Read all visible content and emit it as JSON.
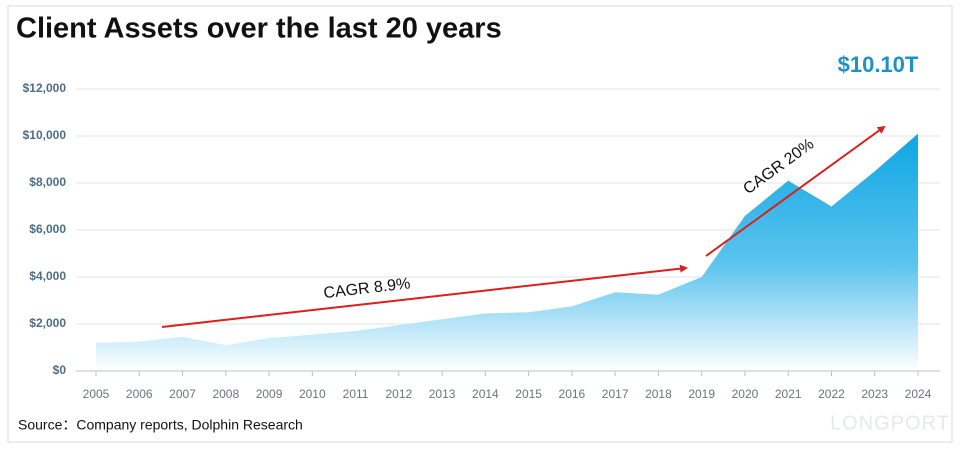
{
  "chart_data": {
    "type": "area",
    "title": "Client Assets over the last 20 years",
    "headline": "$10.10T",
    "source": "Source：Company reports, Dolphin Research",
    "watermark": "LONGPORT",
    "annotations": [
      "CAGR 8.9%",
      "CAGR 20%"
    ],
    "categories": [
      "2005",
      "2006",
      "2007",
      "2008",
      "2009",
      "2010",
      "2011",
      "2012",
      "2013",
      "2014",
      "2015",
      "2016",
      "2017",
      "2018",
      "2019",
      "2020",
      "2021",
      "2022",
      "2023",
      "2024"
    ],
    "values": [
      1200,
      1250,
      1450,
      1100,
      1400,
      1550,
      1700,
      1950,
      2200,
      2450,
      2500,
      2750,
      3350,
      3250,
      4000,
      6600,
      8100,
      7000,
      8500,
      10100
    ],
    "color": "#15a8e4",
    "ylim": [
      0,
      12000
    ],
    "yticks": [
      {
        "value": 0,
        "label": "$0"
      },
      {
        "value": 2000,
        "label": "$2,000"
      },
      {
        "value": 4000,
        "label": "$4,000"
      },
      {
        "value": 6000,
        "label": "$6,000"
      },
      {
        "value": 8000,
        "label": "$8,000"
      },
      {
        "value": 10000,
        "label": "$10,000"
      },
      {
        "value": 12000,
        "label": "$12,000"
      }
    ],
    "grid": true
  }
}
